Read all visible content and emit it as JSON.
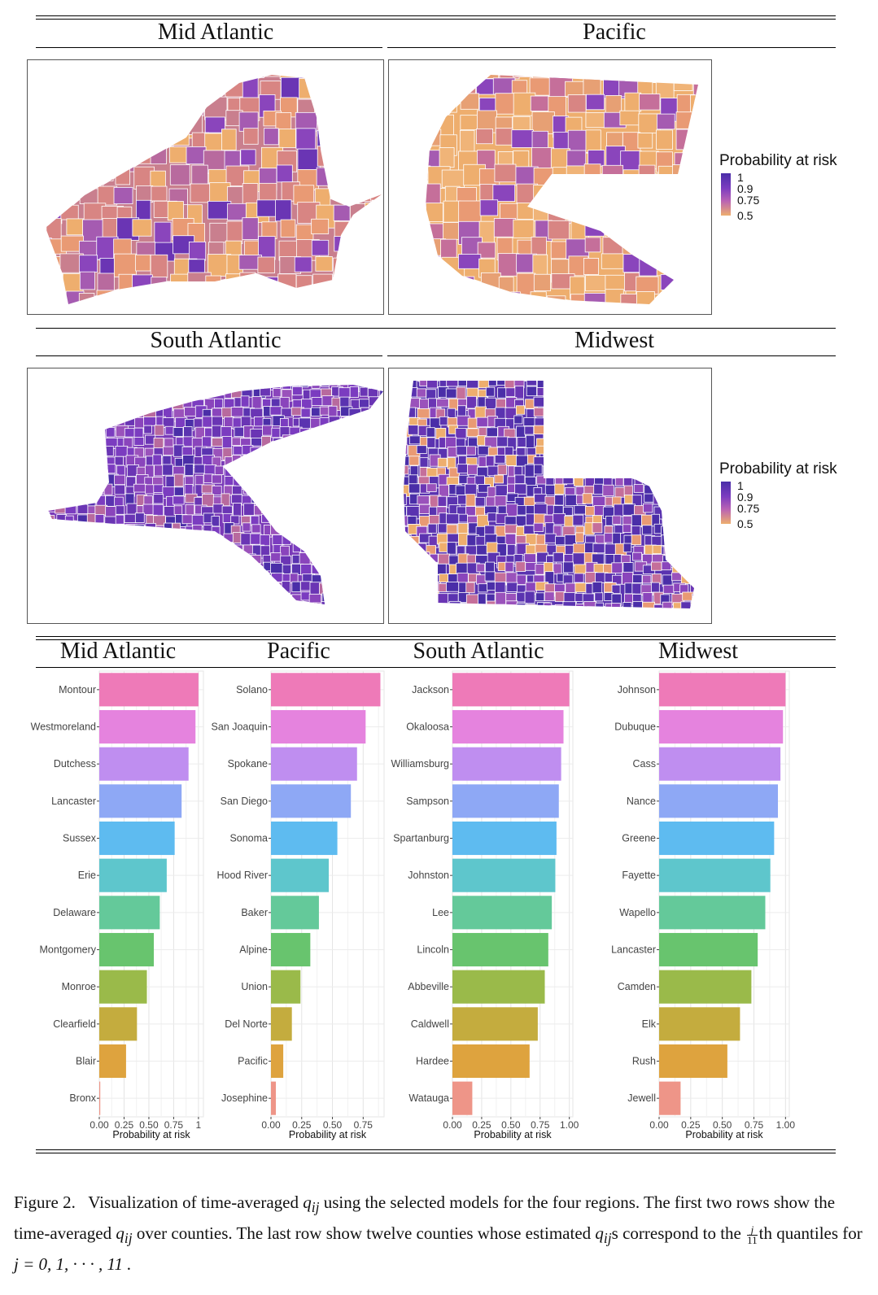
{
  "maps": {
    "mid_atlantic_title": "Mid Atlantic",
    "pacific_title": "Pacific",
    "south_atlantic_title": "South Atlantic",
    "midwest_title": "Midwest",
    "legend": {
      "title": "Probability at risk",
      "ticks": [
        "1",
        "0.9",
        "0.75",
        "0.5"
      ]
    },
    "colors": {
      "high": "#4a2ea8",
      "mid": "#9b4fc0",
      "low": "#eeae6e"
    }
  },
  "chart_data": [
    {
      "type": "bar",
      "title": "Mid Atlantic",
      "xlabel": "Probability at risk",
      "xlim": [
        0,
        1.05
      ],
      "tick_labels": [
        "0.00",
        "0.25",
        "0.50",
        "0.75",
        "1"
      ],
      "categories": [
        "Montour",
        "Westmoreland",
        "Dutchess",
        "Lancaster",
        "Sussex",
        "Erie",
        "Delaware",
        "Montgomery",
        "Monroe",
        "Clearfield",
        "Blair",
        "Bronx"
      ],
      "values": [
        1.0,
        0.97,
        0.9,
        0.83,
        0.76,
        0.68,
        0.61,
        0.55,
        0.48,
        0.38,
        0.27,
        0.01
      ]
    },
    {
      "type": "bar",
      "title": "Pacific",
      "xlabel": "Probability at risk",
      "xlim": [
        0,
        0.92
      ],
      "tick_labels": [
        "0.00",
        "0.25",
        "0.50",
        "0.75"
      ],
      "categories": [
        "Solano",
        "San Joaquin",
        "Spokane",
        "San Diego",
        "Sonoma",
        "Hood River",
        "Baker",
        "Alpine",
        "Union",
        "Del Norte",
        "Pacific",
        "Josephine"
      ],
      "values": [
        0.89,
        0.77,
        0.7,
        0.65,
        0.54,
        0.47,
        0.39,
        0.32,
        0.24,
        0.17,
        0.1,
        0.04
      ]
    },
    {
      "type": "bar",
      "title": "South Atlantic",
      "xlabel": "Probability at risk",
      "xlim": [
        0,
        1.03
      ],
      "tick_labels": [
        "0.00",
        "0.25",
        "0.50",
        "0.75",
        "1.00"
      ],
      "categories": [
        "Jackson",
        "Okaloosa",
        "Williamsburg",
        "Sampson",
        "Spartanburg",
        "Johnston",
        "Lee",
        "Lincoln",
        "Abbeville",
        "Caldwell",
        "Hardee",
        "Watauga"
      ],
      "values": [
        1.0,
        0.95,
        0.93,
        0.91,
        0.89,
        0.88,
        0.85,
        0.82,
        0.79,
        0.73,
        0.66,
        0.17
      ]
    },
    {
      "type": "bar",
      "title": "Midwest",
      "xlabel": "Probability at risk",
      "xlim": [
        0,
        1.03
      ],
      "tick_labels": [
        "0.00",
        "0.25",
        "0.50",
        "0.75",
        "1.00"
      ],
      "categories": [
        "Johnson",
        "Dubuque",
        "Cass",
        "Nance",
        "Greene",
        "Fayette",
        "Wapello",
        "Lancaster",
        "Camden",
        "Elk",
        "Rush",
        "Jewell"
      ],
      "values": [
        1.0,
        0.98,
        0.96,
        0.94,
        0.91,
        0.88,
        0.84,
        0.78,
        0.73,
        0.64,
        0.54,
        0.17
      ]
    }
  ],
  "bar_colors": [
    "#ee7ab8",
    "#e583de",
    "#bf8ef0",
    "#8ea8f5",
    "#5ebbf0",
    "#5ec6cc",
    "#64c99a",
    "#68c46e",
    "#9aba4a",
    "#c4ac3e",
    "#dea33e",
    "#ee9588"
  ],
  "caption": {
    "prefix": "Figure 2.",
    "part1": "Visualization of time-averaged ",
    "q": "q",
    "sub": "ij",
    "part2": " using the selected models for the four regions. The first two rows show the time-averaged ",
    "part3": " over counties. The last row show twelve counties whose estimated ",
    "part4": "s correspond to the ",
    "frac_num": "j",
    "frac_den": "11",
    "part5": "th quantiles for ",
    "formula": "j = 0, 1, · · · , 11 ."
  }
}
